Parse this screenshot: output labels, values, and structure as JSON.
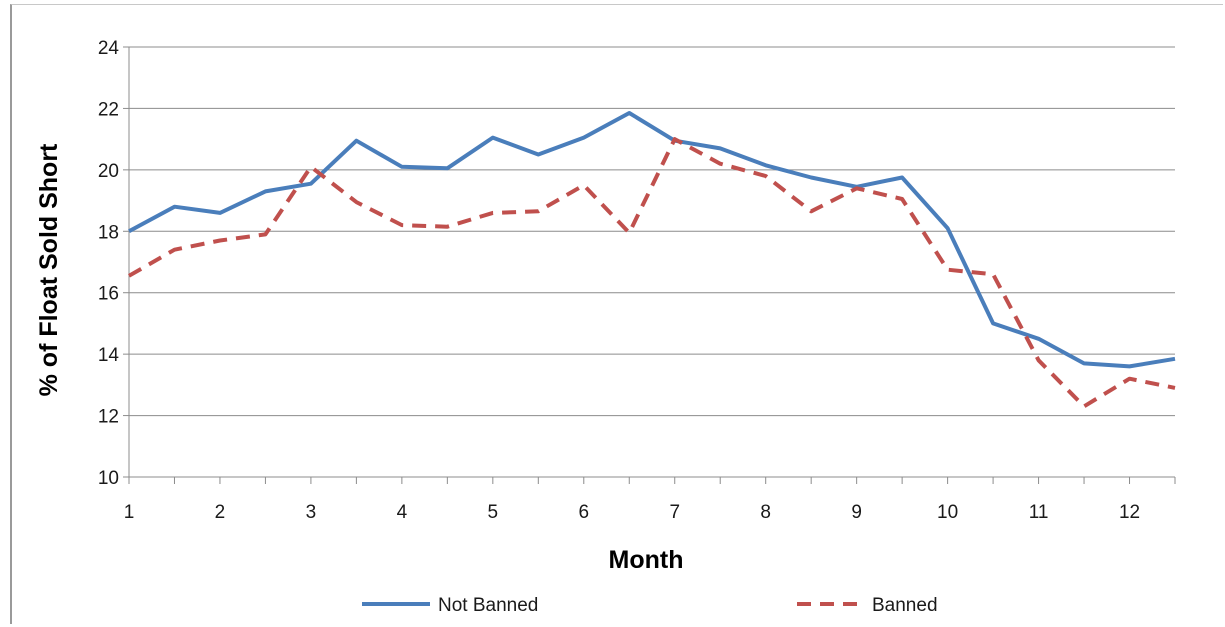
{
  "chart_data": {
    "type": "line",
    "title": "",
    "xlabel": "Month",
    "ylabel": "% of Float Sold Short",
    "xlim": [
      1,
      12.5
    ],
    "ylim": [
      10,
      24
    ],
    "x_ticks": [
      1,
      2,
      3,
      4,
      5,
      6,
      7,
      8,
      9,
      10,
      11,
      12
    ],
    "y_ticks": [
      10,
      12,
      14,
      16,
      18,
      20,
      22,
      24
    ],
    "grid": "horizontal",
    "legend_position": "bottom",
    "x": [
      1,
      1.5,
      2,
      2.5,
      3,
      3.5,
      4,
      4.5,
      5,
      5.5,
      6,
      6.5,
      7,
      7.5,
      8,
      8.5,
      9,
      9.5,
      10,
      10.5,
      11,
      11.5,
      12,
      12.5
    ],
    "series": [
      {
        "name": "Not Banned",
        "color": "#4a7ebb",
        "style": "solid",
        "values": [
          18.0,
          18.8,
          18.6,
          19.3,
          19.55,
          20.95,
          20.1,
          20.05,
          21.05,
          20.5,
          21.05,
          21.85,
          20.95,
          20.7,
          20.15,
          19.75,
          19.45,
          19.75,
          18.1,
          15.0,
          14.5,
          13.7,
          13.6,
          13.85
        ]
      },
      {
        "name": "Banned",
        "color": "#c0504d",
        "style": "dashed",
        "values": [
          16.55,
          17.4,
          17.7,
          17.9,
          20.1,
          18.95,
          18.2,
          18.15,
          18.6,
          18.65,
          19.5,
          17.95,
          21.0,
          20.2,
          19.8,
          18.65,
          19.4,
          19.05,
          16.75,
          16.6,
          13.8,
          12.3,
          13.2,
          12.9
        ]
      }
    ]
  }
}
